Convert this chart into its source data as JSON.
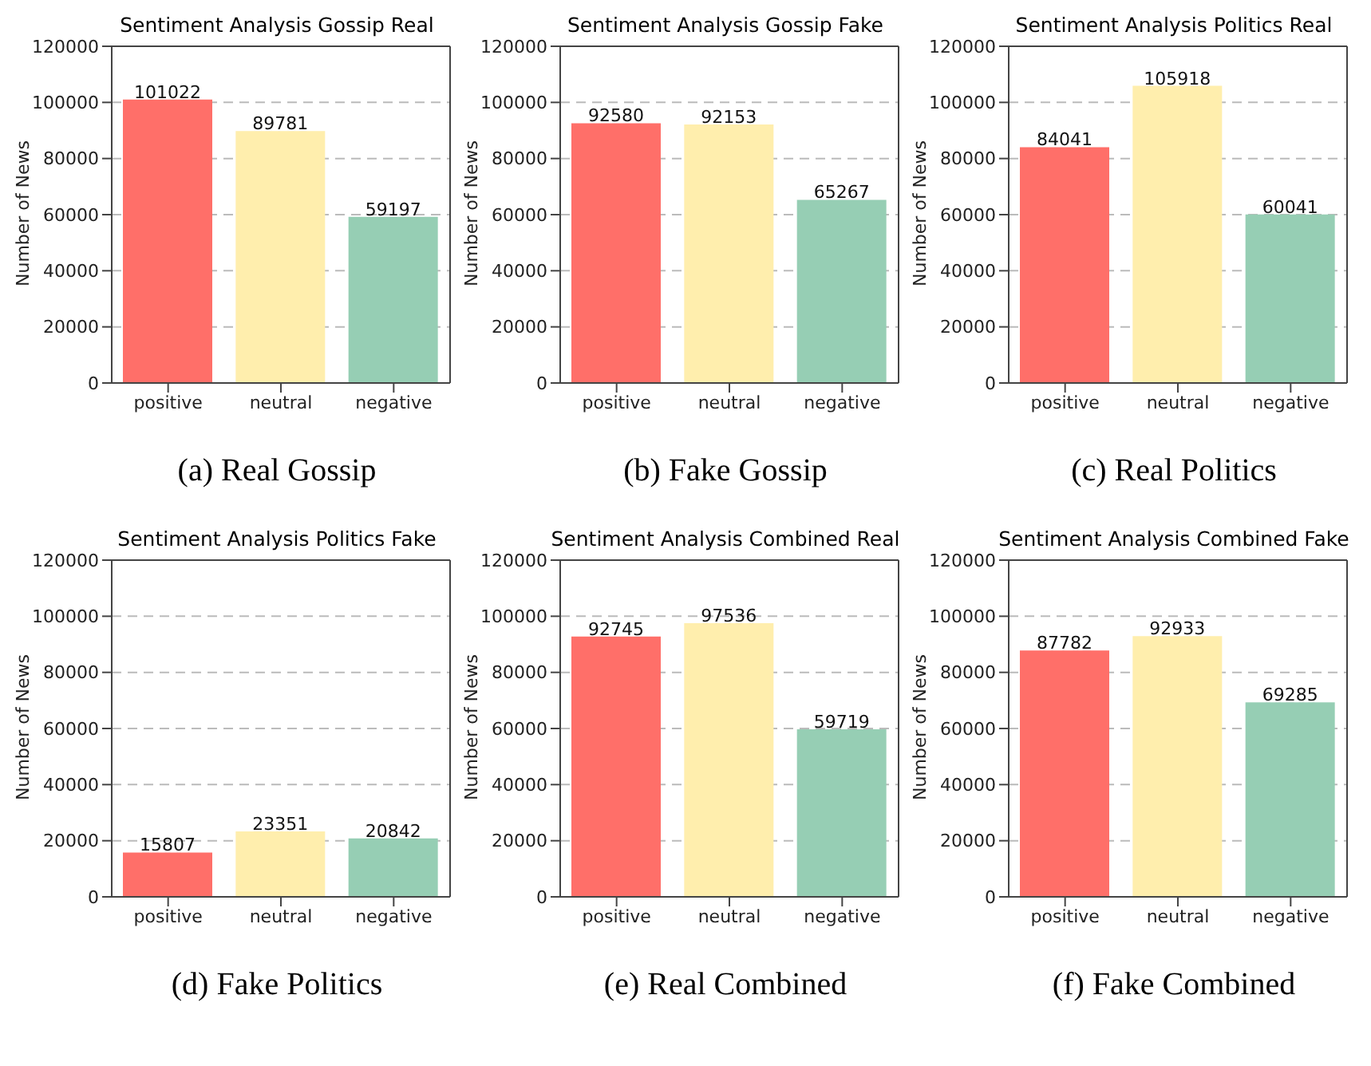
{
  "chart_data": [
    {
      "type": "bar",
      "title": "Sentiment Analysis Gossip Real",
      "ylabel": "Number of News",
      "categories": [
        "positive",
        "neutral",
        "negative"
      ],
      "values": [
        101022,
        89781,
        59197
      ],
      "colors": [
        "#ff6f69",
        "#ffeead",
        "#96ceb4"
      ],
      "ylim": [
        0,
        120000
      ],
      "yticks": [
        0,
        20000,
        40000,
        60000,
        80000,
        100000,
        120000
      ],
      "grid": "y",
      "data_labels": true,
      "annotations": [
        "(a) Real Gossip"
      ]
    },
    {
      "type": "bar",
      "title": "Sentiment Analysis Gossip Fake",
      "ylabel": "Number of News",
      "categories": [
        "positive",
        "neutral",
        "negative"
      ],
      "values": [
        92580,
        92153,
        65267
      ],
      "colors": [
        "#ff6f69",
        "#ffeead",
        "#96ceb4"
      ],
      "ylim": [
        0,
        120000
      ],
      "yticks": [
        0,
        20000,
        40000,
        60000,
        80000,
        100000,
        120000
      ],
      "grid": "y",
      "data_labels": true,
      "annotations": [
        "(b) Fake Gossip"
      ]
    },
    {
      "type": "bar",
      "title": "Sentiment Analysis Politics Real",
      "ylabel": "Number of News",
      "categories": [
        "positive",
        "neutral",
        "negative"
      ],
      "values": [
        84041,
        105918,
        60041
      ],
      "colors": [
        "#ff6f69",
        "#ffeead",
        "#96ceb4"
      ],
      "ylim": [
        0,
        120000
      ],
      "yticks": [
        0,
        20000,
        40000,
        60000,
        80000,
        100000,
        120000
      ],
      "grid": "y",
      "data_labels": true,
      "annotations": [
        "(c) Real Politics"
      ]
    },
    {
      "type": "bar",
      "title": "Sentiment Analysis Politics Fake",
      "ylabel": "Number of News",
      "categories": [
        "positive",
        "neutral",
        "negative"
      ],
      "values": [
        15807,
        23351,
        20842
      ],
      "colors": [
        "#ff6f69",
        "#ffeead",
        "#96ceb4"
      ],
      "ylim": [
        0,
        120000
      ],
      "yticks": [
        0,
        20000,
        40000,
        60000,
        80000,
        100000,
        120000
      ],
      "grid": "y",
      "data_labels": true,
      "annotations": [
        "(d) Fake Politics"
      ]
    },
    {
      "type": "bar",
      "title": "Sentiment Analysis Combined Real",
      "ylabel": "Number of News",
      "categories": [
        "positive",
        "neutral",
        "negative"
      ],
      "values": [
        92745,
        97536,
        59719
      ],
      "colors": [
        "#ff6f69",
        "#ffeead",
        "#96ceb4"
      ],
      "ylim": [
        0,
        120000
      ],
      "yticks": [
        0,
        20000,
        40000,
        60000,
        80000,
        100000,
        120000
      ],
      "grid": "y",
      "data_labels": true,
      "annotations": [
        "(e) Real Combined"
      ]
    },
    {
      "type": "bar",
      "title": "Sentiment Analysis Combined Fake",
      "ylabel": "Number of News",
      "categories": [
        "positive",
        "neutral",
        "negative"
      ],
      "values": [
        87782,
        92933,
        69285
      ],
      "colors": [
        "#ff6f69",
        "#ffeead",
        "#96ceb4"
      ],
      "ylim": [
        0,
        120000
      ],
      "yticks": [
        0,
        20000,
        40000,
        60000,
        80000,
        100000,
        120000
      ],
      "grid": "y",
      "data_labels": true,
      "annotations": [
        "(f) Fake Combined"
      ]
    }
  ]
}
